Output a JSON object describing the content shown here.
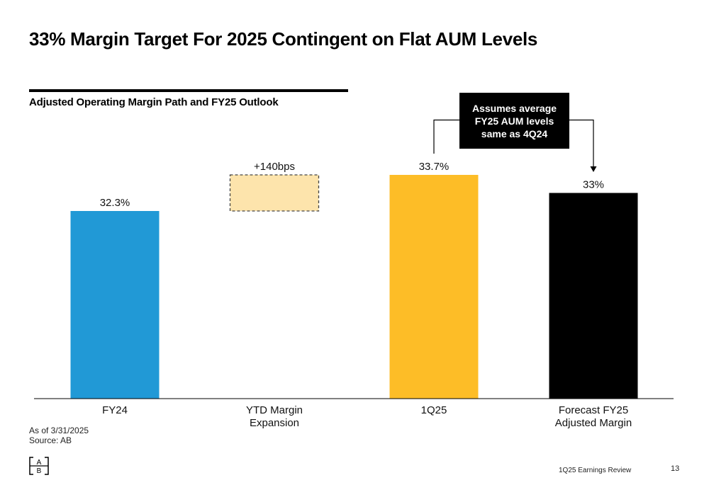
{
  "page": {
    "title": "33% Margin Target For 2025 Contingent on Flat AUM Levels",
    "subtitle": "Adjusted Operating Margin Path and FY25 Outlook",
    "footnote_date": "As of 3/31/2025",
    "footnote_source": "Source: AB",
    "footer_label": "1Q25 Earnings Review",
    "page_number": "13",
    "logo_top": "A",
    "logo_bottom": "B"
  },
  "chart_data": {
    "type": "bar",
    "subtype": "waterfall",
    "unit": "%",
    "ylim": [
      0,
      100
    ],
    "grid": false,
    "categories": [
      "FY24",
      "YTD Margin\nExpansion",
      "1Q25",
      "Forecast FY25\nAdjusted Margin"
    ],
    "bars": [
      {
        "category": "FY24",
        "value": 32.3,
        "base": 0,
        "label": "32.3%",
        "kind": "total",
        "color": "#2199d6"
      },
      {
        "category": "YTD Margin Expansion",
        "value": 1.4,
        "base": 32.3,
        "label": "+140bps",
        "kind": "increment",
        "color": "#fde4ac"
      },
      {
        "category": "1Q25",
        "value": 33.7,
        "base": 0,
        "label": "33.7%",
        "kind": "total",
        "color": "#fdbd27"
      },
      {
        "category": "Forecast FY25 Adjusted Margin",
        "value": 33,
        "base": 0,
        "label": "33%",
        "kind": "total",
        "color": "#000000"
      }
    ],
    "annotation": {
      "text": [
        "Assumes average",
        "FY25 AUM levels",
        "same as 4Q24"
      ],
      "from_category": "1Q25",
      "to_category": "Forecast FY25 Adjusted Margin",
      "box_color": "#000000",
      "text_color": "#ffffff"
    }
  }
}
